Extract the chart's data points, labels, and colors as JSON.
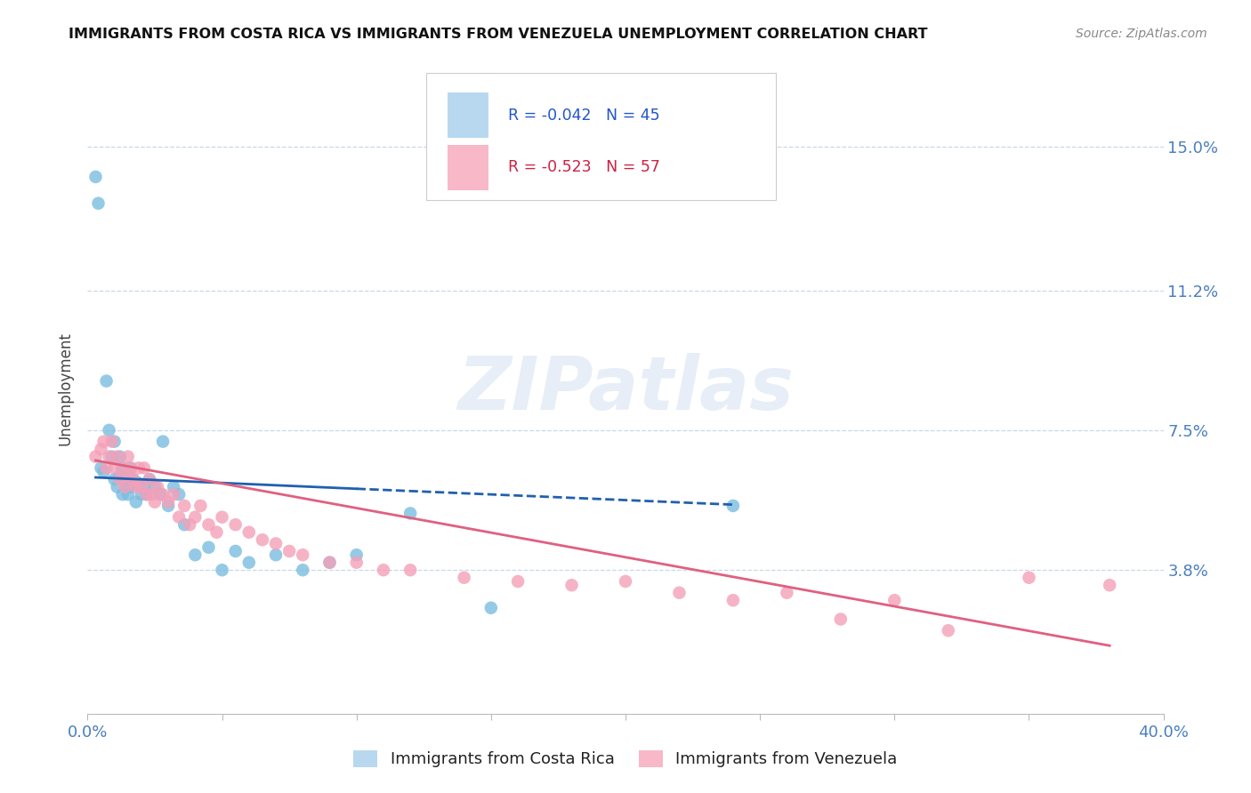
{
  "title": "IMMIGRANTS FROM COSTA RICA VS IMMIGRANTS FROM VENEZUELA UNEMPLOYMENT CORRELATION CHART",
  "source": "Source: ZipAtlas.com",
  "ylabel": "Unemployment",
  "y_ticks": [
    0.038,
    0.075,
    0.112,
    0.15
  ],
  "y_tick_labels": [
    "3.8%",
    "7.5%",
    "11.2%",
    "15.0%"
  ],
  "x_range": [
    0.0,
    0.4
  ],
  "y_range": [
    0.0,
    0.172
  ],
  "series1_label": "Immigrants from Costa Rica",
  "series2_label": "Immigrants from Venezuela",
  "R1": -0.042,
  "N1": 45,
  "R2": -0.523,
  "N2": 57,
  "color1": "#7bbde0",
  "color2": "#f4a0b8",
  "line_color1": "#2060b0",
  "line_color2": "#e06080",
  "legend_box_color1": "#b8d8f0",
  "legend_box_color2": "#f8b8c8",
  "watermark": "ZIPatlas",
  "scatter1_x": [
    0.003,
    0.004,
    0.005,
    0.006,
    0.007,
    0.008,
    0.009,
    0.01,
    0.01,
    0.011,
    0.012,
    0.012,
    0.013,
    0.013,
    0.014,
    0.015,
    0.015,
    0.016,
    0.016,
    0.017,
    0.018,
    0.019,
    0.02,
    0.021,
    0.022,
    0.023,
    0.025,
    0.027,
    0.028,
    0.03,
    0.032,
    0.034,
    0.036,
    0.04,
    0.045,
    0.05,
    0.055,
    0.06,
    0.07,
    0.08,
    0.09,
    0.1,
    0.12,
    0.15,
    0.24
  ],
  "scatter1_y": [
    0.142,
    0.135,
    0.065,
    0.064,
    0.088,
    0.075,
    0.068,
    0.072,
    0.062,
    0.06,
    0.063,
    0.068,
    0.058,
    0.065,
    0.062,
    0.058,
    0.06,
    0.065,
    0.06,
    0.062,
    0.056,
    0.061,
    0.058,
    0.06,
    0.058,
    0.062,
    0.06,
    0.058,
    0.072,
    0.055,
    0.06,
    0.058,
    0.05,
    0.042,
    0.044,
    0.038,
    0.043,
    0.04,
    0.042,
    0.038,
    0.04,
    0.042,
    0.053,
    0.028,
    0.055
  ],
  "scatter2_x": [
    0.003,
    0.005,
    0.006,
    0.007,
    0.008,
    0.009,
    0.01,
    0.011,
    0.012,
    0.013,
    0.014,
    0.015,
    0.015,
    0.016,
    0.017,
    0.018,
    0.019,
    0.02,
    0.021,
    0.022,
    0.023,
    0.024,
    0.025,
    0.026,
    0.028,
    0.03,
    0.032,
    0.034,
    0.036,
    0.038,
    0.04,
    0.042,
    0.045,
    0.048,
    0.05,
    0.055,
    0.06,
    0.065,
    0.07,
    0.075,
    0.08,
    0.09,
    0.1,
    0.11,
    0.12,
    0.14,
    0.16,
    0.18,
    0.2,
    0.22,
    0.24,
    0.26,
    0.28,
    0.3,
    0.32,
    0.35,
    0.38
  ],
  "scatter2_y": [
    0.068,
    0.07,
    0.072,
    0.065,
    0.068,
    0.072,
    0.065,
    0.068,
    0.062,
    0.065,
    0.06,
    0.063,
    0.068,
    0.065,
    0.062,
    0.06,
    0.065,
    0.06,
    0.065,
    0.058,
    0.062,
    0.058,
    0.056,
    0.06,
    0.058,
    0.056,
    0.058,
    0.052,
    0.055,
    0.05,
    0.052,
    0.055,
    0.05,
    0.048,
    0.052,
    0.05,
    0.048,
    0.046,
    0.045,
    0.043,
    0.042,
    0.04,
    0.04,
    0.038,
    0.038,
    0.036,
    0.035,
    0.034,
    0.035,
    0.032,
    0.03,
    0.032,
    0.025,
    0.03,
    0.022,
    0.036,
    0.034
  ],
  "line1_x_start": 0.003,
  "line1_x_solid_end": 0.1,
  "line1_x_dash_end": 0.24,
  "line1_y_start": 0.0625,
  "line1_y_solid_end": 0.0595,
  "line1_y_dash_end": 0.0553,
  "line2_x_start": 0.003,
  "line2_x_end": 0.38,
  "line2_y_start": 0.067,
  "line2_y_end": 0.018
}
